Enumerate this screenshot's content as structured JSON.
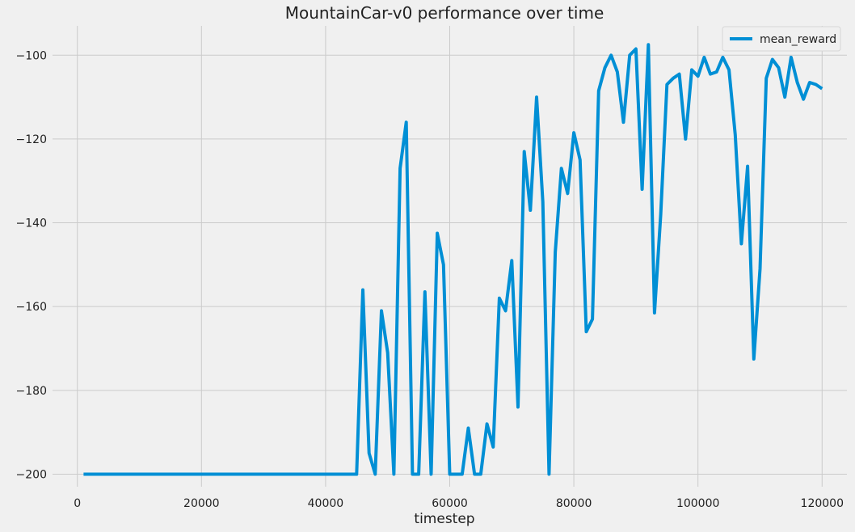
{
  "chart_data": {
    "type": "line",
    "title": "MountainCar-v0 performance over time",
    "xlabel": "timestep",
    "ylabel": "",
    "xlim": [
      -4000,
      124000
    ],
    "ylim": [
      -203,
      -93
    ],
    "xticks": [
      0,
      20000,
      40000,
      60000,
      80000,
      100000,
      120000
    ],
    "xtick_labels": [
      "0",
      "20000",
      "40000",
      "60000",
      "80000",
      "100000",
      "120000"
    ],
    "yticks": [
      -200,
      -180,
      -160,
      -140,
      -120,
      -100
    ],
    "ytick_labels": [
      "−200",
      "−180",
      "−160",
      "−140",
      "−120",
      "−100"
    ],
    "grid": true,
    "legend": {
      "position": "top-right",
      "entries": [
        "mean_reward"
      ]
    },
    "series": [
      {
        "name": "mean_reward",
        "color": "#008fd5",
        "x": [
          1000,
          2000,
          3000,
          4000,
          5000,
          6000,
          7000,
          8000,
          9000,
          10000,
          11000,
          12000,
          13000,
          14000,
          15000,
          16000,
          17000,
          18000,
          19000,
          20000,
          21000,
          22000,
          23000,
          24000,
          25000,
          26000,
          27000,
          28000,
          29000,
          30000,
          31000,
          32000,
          33000,
          34000,
          35000,
          36000,
          37000,
          38000,
          39000,
          40000,
          41000,
          42000,
          43000,
          44000,
          45000,
          46000,
          47000,
          48000,
          49000,
          50000,
          51000,
          52000,
          53000,
          54000,
          55000,
          56000,
          57000,
          58000,
          59000,
          60000,
          61000,
          62000,
          63000,
          64000,
          65000,
          66000,
          67000,
          68000,
          69000,
          70000,
          71000,
          72000,
          73000,
          74000,
          75000,
          76000,
          77000,
          78000,
          79000,
          80000,
          81000,
          82000,
          83000,
          84000,
          85000,
          86000,
          87000,
          88000,
          89000,
          90000,
          91000,
          92000,
          93000,
          94000,
          95000,
          96000,
          97000,
          98000,
          99000,
          100000,
          101000,
          102000,
          103000,
          104000,
          105000,
          106000,
          107000,
          108000,
          109000,
          110000,
          111000,
          112000,
          113000,
          114000,
          115000,
          116000,
          117000,
          118000,
          119000,
          120000
        ],
        "values": [
          -200,
          -200,
          -200,
          -200,
          -200,
          -200,
          -200,
          -200,
          -200,
          -200,
          -200,
          -200,
          -200,
          -200,
          -200,
          -200,
          -200,
          -200,
          -200,
          -200,
          -200,
          -200,
          -200,
          -200,
          -200,
          -200,
          -200,
          -200,
          -200,
          -200,
          -200,
          -200,
          -200,
          -200,
          -200,
          -200,
          -200,
          -200,
          -200,
          -200,
          -200,
          -200,
          -200,
          -200,
          -200,
          -156,
          -195,
          -200,
          -161,
          -171,
          -200,
          -127,
          -116,
          -200,
          -200,
          -156.5,
          -200,
          -142.5,
          -150,
          -200,
          -200,
          -200,
          -189,
          -200,
          -200,
          -188,
          -193.5,
          -158,
          -161,
          -149,
          -184,
          -123,
          -137,
          -110,
          -135,
          -200,
          -147,
          -127,
          -133,
          -118.5,
          -125,
          -166,
          -163,
          -108.5,
          -103,
          -100,
          -104,
          -116,
          -100,
          -98.5,
          -132,
          -97.5,
          -161.5,
          -138,
          -107,
          -105.5,
          -104.5,
          -120,
          -103.5,
          -105,
          -100.5,
          -104.5,
          -104,
          -100.5,
          -103.5,
          -119,
          -145,
          -126.5,
          -172.5,
          -151,
          -105.5,
          -101,
          -103,
          -110,
          -100.5,
          -106.5,
          -110.5,
          -106.5,
          -107,
          -108
        ]
      }
    ]
  }
}
